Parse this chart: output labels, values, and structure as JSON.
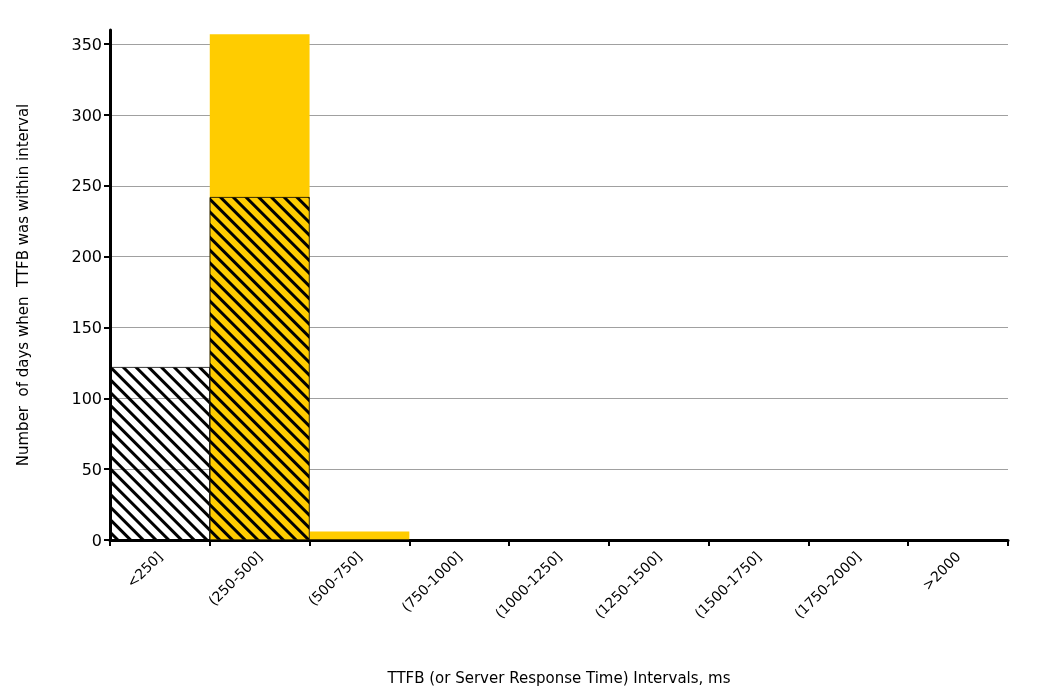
{
  "chart_data": {
    "type": "bar",
    "xlabel": "TTFB (or Server Response Time) Intervals, ms",
    "ylabel": "Number  of days when  TTFB was within interval",
    "categories": [
      "<250]",
      "(250-500]",
      "(500-750]",
      "(750-1000]",
      "(1000-1250]",
      "(1250-1500]",
      "(1500-1750]",
      "(1750-2000]",
      ">2000"
    ],
    "series": [
      {
        "color": "#ffcc00",
        "values": [
          0,
          357,
          6,
          0,
          0,
          0,
          0,
          0,
          0
        ]
      },
      {
        "color": "#000000",
        "values": [
          122,
          242,
          0,
          0,
          0,
          0,
          0,
          0,
          0
        ]
      }
    ],
    "ylim": [
      0,
      360
    ],
    "yticks": [
      0,
      50,
      100,
      150,
      200,
      250,
      300,
      350
    ],
    "grid": "y"
  }
}
